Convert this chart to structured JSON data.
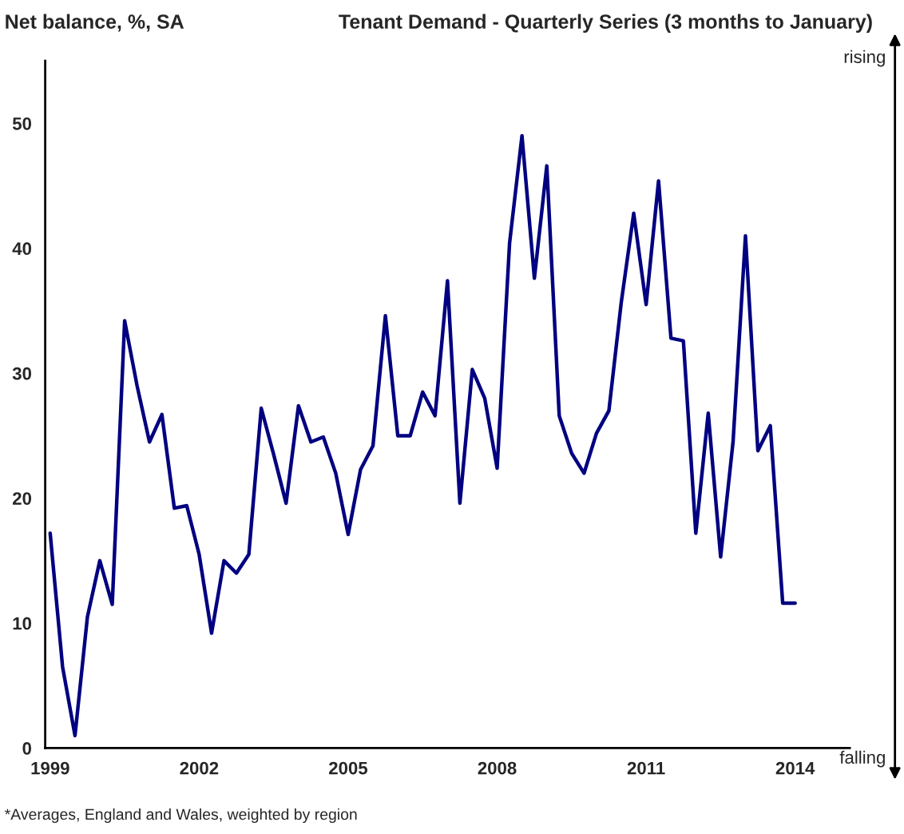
{
  "chart_data": {
    "type": "line",
    "title": "Tenant Demand - Quarterly Series (3 months to January)",
    "ylabel": "Net balance, %, SA",
    "annotations": [
      "rising",
      "falling",
      "*Averages, England and Wales, weighted by region"
    ],
    "x": [
      1999,
      1999.25,
      1999.5,
      1999.75,
      2000,
      2000.25,
      2000.5,
      2000.75,
      2001,
      2001.25,
      2001.5,
      2001.75,
      2002,
      2002.25,
      2002.5,
      2002.75,
      2003,
      2003.25,
      2003.5,
      2003.75,
      2004,
      2004.25,
      2004.5,
      2004.75,
      2005,
      2005.25,
      2005.5,
      2005.75,
      2006,
      2006.25,
      2006.5,
      2006.75,
      2007,
      2007.25,
      2007.5,
      2007.75,
      2008,
      2008.25,
      2008.5,
      2008.75,
      2009,
      2009.25,
      2009.5,
      2009.75,
      2010,
      2010.25,
      2010.5,
      2010.75,
      2011,
      2011.25,
      2011.5,
      2011.75,
      2012,
      2012.25,
      2012.5,
      2012.75,
      2013,
      2013.25,
      2013.5,
      2013.75,
      2014
    ],
    "series": [
      {
        "color": "#000080",
        "values": [
          17.2,
          6.5,
          1,
          10.5,
          15,
          11.5,
          34.2,
          29,
          24.5,
          26.7,
          19.2,
          19.4,
          15.5,
          9.2,
          15,
          14,
          15.5,
          27.2,
          23.5,
          19.6,
          27.4,
          24.5,
          24.9,
          22,
          17.1,
          22.3,
          24.2,
          34.6,
          25,
          25,
          28.5,
          26.6,
          37.4,
          19.6,
          30.3,
          28,
          22.4,
          40.4,
          49,
          37.6,
          46.6,
          26.6,
          23.6,
          22,
          25.2,
          27,
          35.7,
          42.8,
          35.5,
          45.4,
          32.8,
          32.6,
          17.2,
          26.8,
          15.3,
          24.5,
          41,
          23.8,
          25.8,
          11.6,
          11.6
        ]
      }
    ],
    "xlim": [
      1998.9,
      2015.1
    ],
    "ylim": [
      0,
      55
    ],
    "xticks": [
      1999,
      2002,
      2005,
      2008,
      2011,
      2014
    ],
    "yticks": [
      0,
      10,
      20,
      30,
      40,
      50
    ],
    "grid": false,
    "legend": false,
    "marker": "none",
    "line_style": "solid"
  }
}
